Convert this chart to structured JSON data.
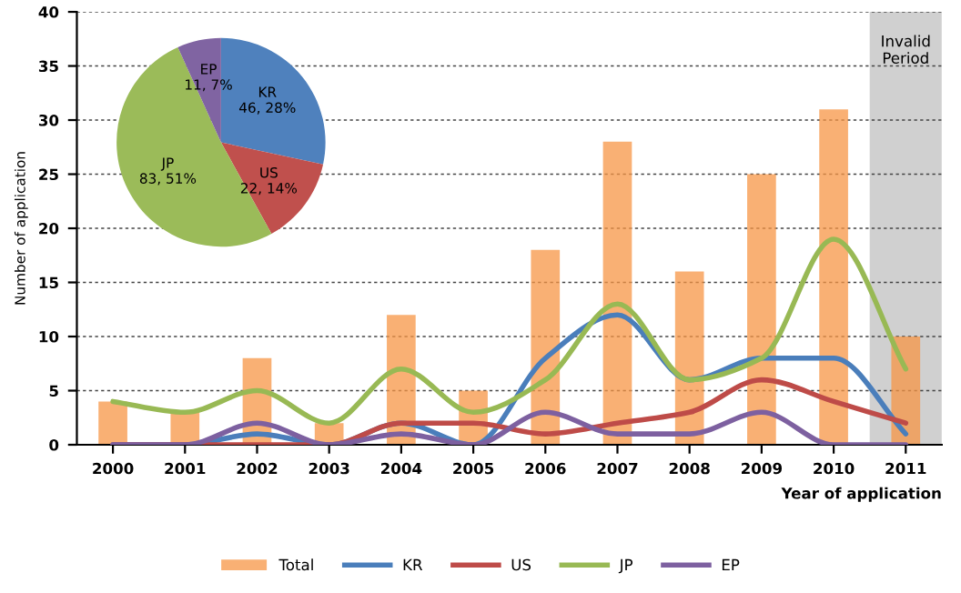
{
  "chart_data": [
    {
      "type": "bar",
      "xlabel": "Year of application",
      "ylabel": "Number of application",
      "categories": [
        "2000",
        "2001",
        "2002",
        "2003",
        "2004",
        "2005",
        "2006",
        "2007",
        "2008",
        "2009",
        "2010",
        "2011"
      ],
      "series": [
        {
          "name": "Total",
          "type": "bar",
          "color": "#f79646",
          "values": [
            4,
            3,
            8,
            2,
            12,
            5,
            18,
            28,
            16,
            25,
            31,
            10
          ]
        },
        {
          "name": "KR",
          "type": "line",
          "color": "#4a7ebb",
          "values": [
            0,
            0,
            1,
            0,
            2,
            0,
            8,
            12,
            6,
            8,
            8,
            1
          ]
        },
        {
          "name": "US",
          "type": "line",
          "color": "#be4b48",
          "values": [
            0,
            0,
            0,
            0,
            2,
            2,
            1,
            2,
            3,
            6,
            4,
            2
          ]
        },
        {
          "name": "JP",
          "type": "line",
          "color": "#98b954",
          "values": [
            4,
            3,
            5,
            2,
            7,
            3,
            6,
            13,
            6,
            8,
            19,
            7
          ]
        },
        {
          "name": "EP",
          "type": "line",
          "color": "#7d60a0",
          "values": [
            0,
            0,
            2,
            0,
            1,
            0,
            3,
            1,
            1,
            3,
            0,
            0
          ]
        }
      ],
      "ylim": [
        0,
        40
      ],
      "yticks": [
        0,
        5,
        10,
        15,
        20,
        25,
        30,
        35,
        40
      ],
      "grid": "y",
      "legend": "bottom",
      "line_style": "solid",
      "marker": "none",
      "bands": [
        {
          "axis": "x",
          "from": "2011",
          "to": "2011",
          "label": "Invalid Period",
          "color": "#b0b0b0"
        }
      ]
    },
    {
      "type": "pie",
      "categories": [
        "KR",
        "US",
        "JP",
        "EP"
      ],
      "values": [
        46,
        22,
        83,
        11
      ],
      "colors": [
        "#4f81bd",
        "#c0504d",
        "#9bbb59",
        "#8064a2"
      ],
      "value_labels": [
        "46, 28%",
        "22, 14%",
        "83, 51%",
        "11, 7%"
      ]
    }
  ]
}
